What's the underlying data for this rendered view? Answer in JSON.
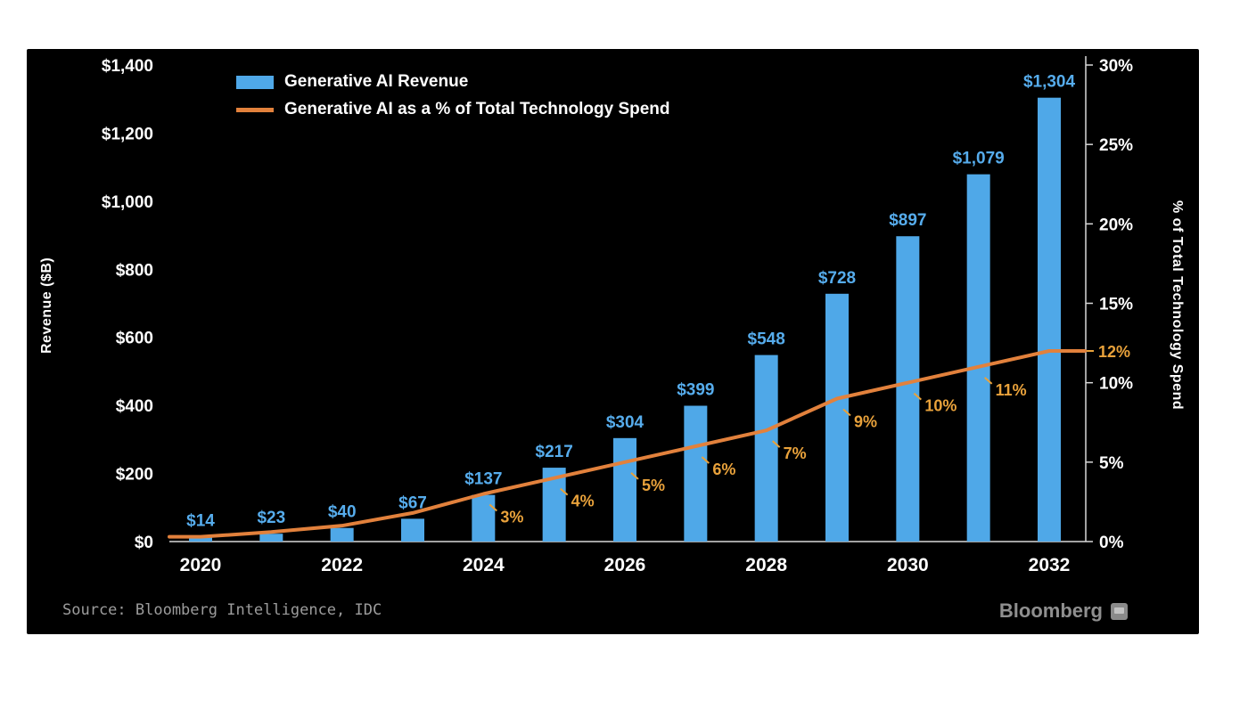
{
  "chart_data": {
    "type": "bar",
    "categories": [
      2020,
      2021,
      2022,
      2023,
      2024,
      2025,
      2026,
      2027,
      2028,
      2029,
      2030,
      2031,
      2032
    ],
    "series": [
      {
        "name": "Generative AI Revenue",
        "type": "bar",
        "axis": "left",
        "color": "#4FA8E8",
        "values": [
          14,
          23,
          40,
          67,
          137,
          217,
          304,
          399,
          548,
          728,
          897,
          1079,
          1304
        ],
        "labels": [
          "$14",
          "$23",
          "$40",
          "$67",
          "$137",
          "$217",
          "$304",
          "$399",
          "$548",
          "$728",
          "$897",
          "$1,079",
          "$1,304"
        ]
      },
      {
        "name": "Generative AI as a % of Total Technology Spend",
        "type": "line",
        "axis": "right",
        "color": "#E2813C",
        "values": [
          0.3,
          0.6,
          1.0,
          1.8,
          3,
          4,
          5,
          6,
          7,
          9,
          10,
          11,
          12
        ],
        "labels": [
          null,
          null,
          null,
          null,
          "3%",
          "4%",
          "5%",
          "6%",
          "7%",
          "9%",
          "10%",
          "11%",
          "12%"
        ]
      }
    ],
    "left_axis": {
      "label": "Revenue ($B)",
      "min": 0,
      "max": 1400,
      "step": 200,
      "tick_labels": [
        "$0",
        "$200",
        "$400",
        "$600",
        "$800",
        "$1,000",
        "$1,200",
        "$1,400"
      ]
    },
    "right_axis": {
      "label": "% of Total Technology Spend",
      "min": 0,
      "max": 30,
      "step": 5,
      "tick_labels": [
        "0%",
        "5%",
        "10%",
        "15%",
        "20%",
        "25%",
        "30%"
      ]
    },
    "x_axis": {
      "tick_years": [
        2020,
        2022,
        2024,
        2026,
        2028,
        2030,
        2032
      ],
      "tick_labels": [
        "2020",
        "2022",
        "2024",
        "2026",
        "2028",
        "2030",
        "2032"
      ]
    },
    "grid": false,
    "legend_position": "top-left"
  },
  "legend": {
    "items": [
      {
        "label": "Generative AI Revenue",
        "color": "#4FA8E8",
        "marker": "rect"
      },
      {
        "label": "Generative AI as a % of Total Technology Spend",
        "color": "#E2813C",
        "marker": "line"
      }
    ]
  },
  "footer": {
    "source": "Source: Bloomberg Intelligence, IDC",
    "brand": "Bloomberg"
  },
  "colors": {
    "page_background": "#ffffff",
    "panel_background": "#000000",
    "bar": "#4FA8E8",
    "line": "#E2813C",
    "bar_label": "#56ACEC",
    "pct_label": "#E9A23B",
    "axis_text": "#ffffff",
    "axis_line": "#d8d8d8",
    "source_text": "#9c9c9c",
    "brand_text": "#8f8f8f"
  }
}
